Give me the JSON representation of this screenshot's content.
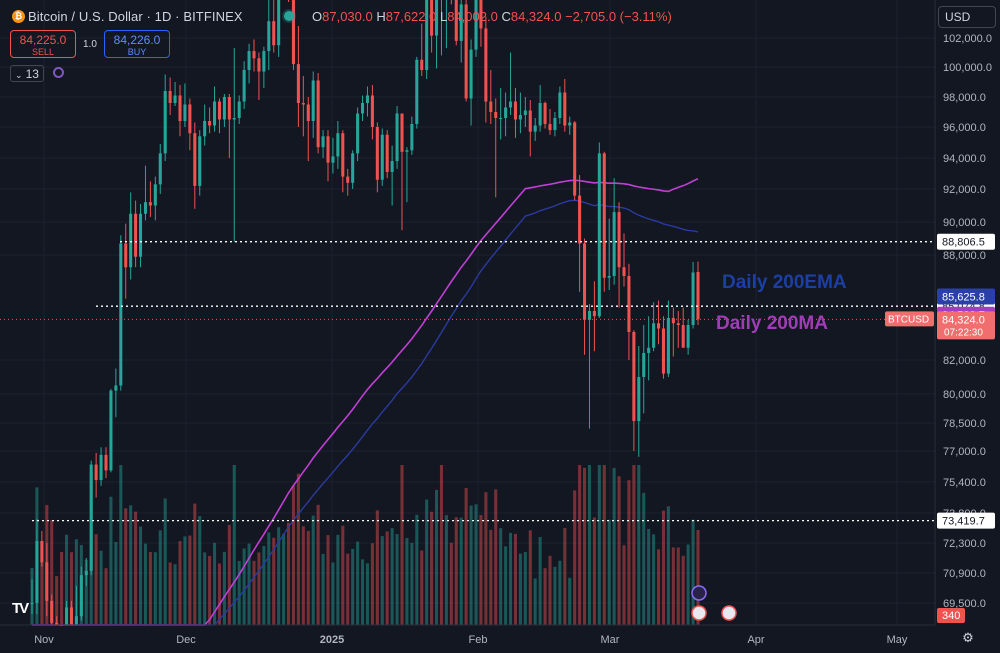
{
  "header": {
    "symbol_icon": "bitcoin-icon",
    "title": "Bitcoin / U.S. Dollar · 1D · BITFINEX",
    "ohlc": {
      "o_label": "O",
      "o": "87,030.0",
      "h_label": "H",
      "h": "87,622.0",
      "l_label": "L",
      "l": "84,002.0",
      "c_label": "C",
      "c": "84,324.0",
      "change": "−2,705.0 (−3.11%)"
    }
  },
  "trade": {
    "sell_price": "84,225.0",
    "sell_label": "SELL",
    "spread": "1.0",
    "buy_price": "84,226.0",
    "buy_label": "BUY"
  },
  "indicators_count": "13",
  "currency": "USD",
  "annotations": {
    "ema_label": "Daily 200EMA",
    "ma_label": "Daily 200MA",
    "ema_color": "#1c3fa3",
    "ma_color": "#a13cb8"
  },
  "chart_data": {
    "type": "candlestick",
    "symbol": "BTCUSD",
    "exchange": "BITFINEX",
    "interval": "1D",
    "x_axis_labels": [
      "Nov",
      "Dec",
      "2025",
      "Feb",
      "Mar",
      "Apr",
      "May"
    ],
    "y_axis_labels": [
      "102,000.0",
      "100,000.0",
      "98,000.0",
      "96,000.0",
      "94,000.0",
      "92,000.0",
      "90,000.0",
      "88,000.0",
      "82,000.0",
      "80,000.0",
      "78,500.0",
      "77,000.0",
      "75,400.0",
      "73,800.0",
      "72,300.0",
      "70,900.0",
      "69,500.0"
    ],
    "y_axis_scale": "log",
    "ylim": [
      68500,
      104000
    ],
    "price_lines": [
      {
        "value": 88806.5,
        "label": "88,806.5",
        "style": "dotted"
      },
      {
        "value": 85074.8,
        "label": "85,074.8",
        "style": "dotted"
      },
      {
        "value": 73419.7,
        "label": "73,419.7",
        "style": "dotted"
      }
    ],
    "price_tags": [
      {
        "value": 85625.8,
        "label": "85,625.8",
        "color": "#2a3fa8"
      },
      {
        "value": 84588.7,
        "label": "84,588.7",
        "color": "#a63cc2"
      },
      {
        "value": 84324.0,
        "label": "84,324.0",
        "sub": "07:22:30",
        "color": "#f26d6d",
        "symbol_label": "BTCUSD"
      }
    ],
    "volume_last": "340",
    "candles": [
      [
        69450,
        70600,
        69000,
        69500
      ],
      [
        69500,
        73500,
        69000,
        72400
      ],
      [
        72400,
        72900,
        71200,
        71400
      ],
      [
        71400,
        72300,
        68900,
        69600
      ],
      [
        69600,
        69900,
        66800,
        68600
      ],
      [
        68600,
        68900,
        67700,
        68300
      ],
      [
        68300,
        68400,
        66800,
        67900
      ],
      [
        67900,
        69600,
        66900,
        69300
      ],
      [
        69300,
        69600,
        68200,
        68400
      ],
      [
        68400,
        70300,
        68000,
        68900
      ],
      [
        68900,
        71200,
        68700,
        70800
      ],
      [
        70800,
        71600,
        70300,
        71000
      ],
      [
        71000,
        76500,
        70800,
        76300
      ],
      [
        76300,
        76900,
        74600,
        75500
      ],
      [
        75500,
        77200,
        75200,
        76800
      ],
      [
        76800,
        77200,
        75600,
        76000
      ],
      [
        76000,
        80300,
        75900,
        80200
      ],
      [
        80200,
        81500,
        78800,
        80500
      ],
      [
        80500,
        89200,
        80200,
        88700
      ],
      [
        88700,
        89900,
        85500,
        87300
      ],
      [
        87300,
        91800,
        86600,
        90500
      ],
      [
        90500,
        91300,
        87300,
        87900
      ],
      [
        87900,
        91100,
        87300,
        90500
      ],
      [
        90500,
        93500,
        90100,
        91200
      ],
      [
        91200,
        92500,
        90300,
        91000
      ],
      [
        91000,
        92800,
        90100,
        92300
      ],
      [
        92300,
        94900,
        91700,
        94300
      ],
      [
        94300,
        99500,
        93800,
        98400
      ],
      [
        98400,
        99300,
        96800,
        97600
      ],
      [
        97600,
        99000,
        97400,
        98100
      ],
      [
        98100,
        98800,
        95400,
        96400
      ],
      [
        96400,
        98900,
        96000,
        97500
      ],
      [
        97500,
        97900,
        94500,
        95600
      ],
      [
        95600,
        96300,
        90800,
        92200
      ],
      [
        92200,
        95800,
        91600,
        95400
      ],
      [
        95400,
        97500,
        94800,
        96400
      ],
      [
        96400,
        97300,
        95600,
        96100
      ],
      [
        96100,
        98700,
        95700,
        97700
      ],
      [
        97700,
        97900,
        95600,
        96500
      ],
      [
        96500,
        98200,
        96000,
        98000
      ],
      [
        98000,
        98200,
        94000,
        96500
      ],
      [
        96500,
        101300,
        88800,
        96600
      ],
      [
        96600,
        98100,
        96200,
        97700
      ],
      [
        97700,
        100400,
        97200,
        99800
      ],
      [
        99800,
        101600,
        98900,
        101100
      ],
      [
        101100,
        101900,
        99700,
        100600
      ],
      [
        100600,
        101000,
        97800,
        99700
      ],
      [
        99700,
        101400,
        98600,
        101100
      ],
      [
        101100,
        104000,
        99800,
        102700
      ],
      [
        102700,
        104000,
        101000,
        101500
      ],
      [
        101500,
        105000,
        100700,
        104800
      ],
      [
        104800,
        108300,
        103800,
        106100
      ],
      [
        106100,
        107800,
        103500,
        106000
      ],
      [
        106000,
        106600,
        99800,
        100200
      ],
      [
        100200,
        102500,
        96000,
        97600
      ],
      [
        97600,
        99400,
        95400,
        97500
      ],
      [
        97500,
        98000,
        93800,
        96400
      ],
      [
        96400,
        99700,
        95300,
        99100
      ],
      [
        99100,
        99600,
        94300,
        94700
      ],
      [
        94700,
        95800,
        94000,
        95400
      ],
      [
        95400,
        95800,
        92500,
        93700
      ],
      [
        93700,
        95300,
        93000,
        94100
      ],
      [
        94100,
        96400,
        93300,
        95600
      ],
      [
        95600,
        95800,
        91800,
        92800
      ],
      [
        92800,
        93300,
        91600,
        92400
      ],
      [
        92400,
        94500,
        92000,
        94300
      ],
      [
        94300,
        97300,
        93800,
        96900
      ],
      [
        96900,
        98100,
        96400,
        97600
      ],
      [
        97600,
        98700,
        96700,
        98100
      ],
      [
        98100,
        98800,
        95200,
        96000
      ],
      [
        96000,
        96300,
        91800,
        92600
      ],
      [
        92600,
        95900,
        92200,
        95500
      ],
      [
        95500,
        95800,
        92700,
        93100
      ],
      [
        93100,
        94800,
        91000,
        93800
      ],
      [
        93800,
        97400,
        93300,
        96900
      ],
      [
        96900,
        96900,
        89500,
        94400
      ],
      [
        94400,
        94700,
        91200,
        94500
      ],
      [
        94500,
        96700,
        94200,
        96200
      ],
      [
        96200,
        100700,
        95900,
        100500
      ],
      [
        100500,
        102600,
        99400,
        99800
      ],
      [
        99800,
        104800,
        99200,
        104100
      ],
      [
        104100,
        106300,
        101000,
        102100
      ],
      [
        102100,
        105800,
        99900,
        104300
      ],
      [
        104300,
        109600,
        100800,
        103700
      ],
      [
        103700,
        106800,
        101300,
        105300
      ],
      [
        105300,
        106300,
        103400,
        104400
      ],
      [
        104400,
        106400,
        101500,
        101800
      ],
      [
        101800,
        104400,
        100300,
        103400
      ],
      [
        103400,
        103800,
        97700,
        97900
      ],
      [
        97900,
        101900,
        96100,
        101200
      ],
      [
        101200,
        105900,
        100700,
        104500
      ],
      [
        104500,
        106400,
        101400,
        102400
      ],
      [
        102400,
        102900,
        96300,
        97700
      ],
      [
        97700,
        99800,
        96200,
        97000
      ],
      [
        97000,
        97900,
        91500,
        96600
      ],
      [
        96600,
        98600,
        95200,
        96600
      ],
      [
        96600,
        98300,
        95400,
        97300
      ],
      [
        97300,
        101000,
        96800,
        97700
      ],
      [
        97700,
        98600,
        95300,
        96500
      ],
      [
        96500,
        98300,
        95600,
        96800
      ],
      [
        96800,
        98000,
        96000,
        97100
      ],
      [
        97100,
        97800,
        94100,
        95700
      ],
      [
        95700,
        96600,
        95100,
        96100
      ],
      [
        96100,
        98800,
        95700,
        97600
      ],
      [
        97600,
        97700,
        95900,
        96200
      ],
      [
        96200,
        97200,
        95500,
        95800
      ],
      [
        95800,
        97000,
        95400,
        96600
      ],
      [
        96600,
        98700,
        96200,
        98300
      ],
      [
        98300,
        99200,
        95700,
        96100
      ],
      [
        96100,
        96700,
        95500,
        96300
      ],
      [
        96300,
        96400,
        91300,
        91600
      ],
      [
        91600,
        92900,
        85900,
        88700
      ],
      [
        88700,
        89000,
        82300,
        84300
      ],
      [
        84300,
        85200,
        78200,
        84800
      ],
      [
        84800,
        86500,
        82500,
        84500
      ],
      [
        84500,
        95000,
        84400,
        94300
      ],
      [
        94300,
        94400,
        85900,
        86700
      ],
      [
        86700,
        90200,
        86000,
        86800
      ],
      [
        86800,
        92700,
        86300,
        90600
      ],
      [
        90600,
        91200,
        85000,
        87300
      ],
      [
        87300,
        89300,
        86200,
        86800
      ],
      [
        86800,
        87500,
        82000,
        83600
      ],
      [
        83600,
        83700,
        77000,
        78600
      ],
      [
        78600,
        82800,
        76700,
        81000
      ],
      [
        81000,
        84000,
        79000,
        82400
      ],
      [
        82400,
        84500,
        80800,
        82700
      ],
      [
        82700,
        85300,
        82500,
        84100
      ],
      [
        84100,
        85400,
        82900,
        83800
      ],
      [
        83800,
        84500,
        80900,
        81200
      ],
      [
        81200,
        85400,
        81000,
        84400
      ],
      [
        84400,
        85000,
        82200,
        84100
      ],
      [
        84100,
        84800,
        82700,
        84000
      ],
      [
        84000,
        85000,
        82900,
        82700
      ],
      [
        82700,
        84300,
        82300,
        84000
      ],
      [
        84000,
        87600,
        83800,
        87000
      ],
      [
        87030,
        87622,
        84002,
        84324
      ]
    ]
  }
}
